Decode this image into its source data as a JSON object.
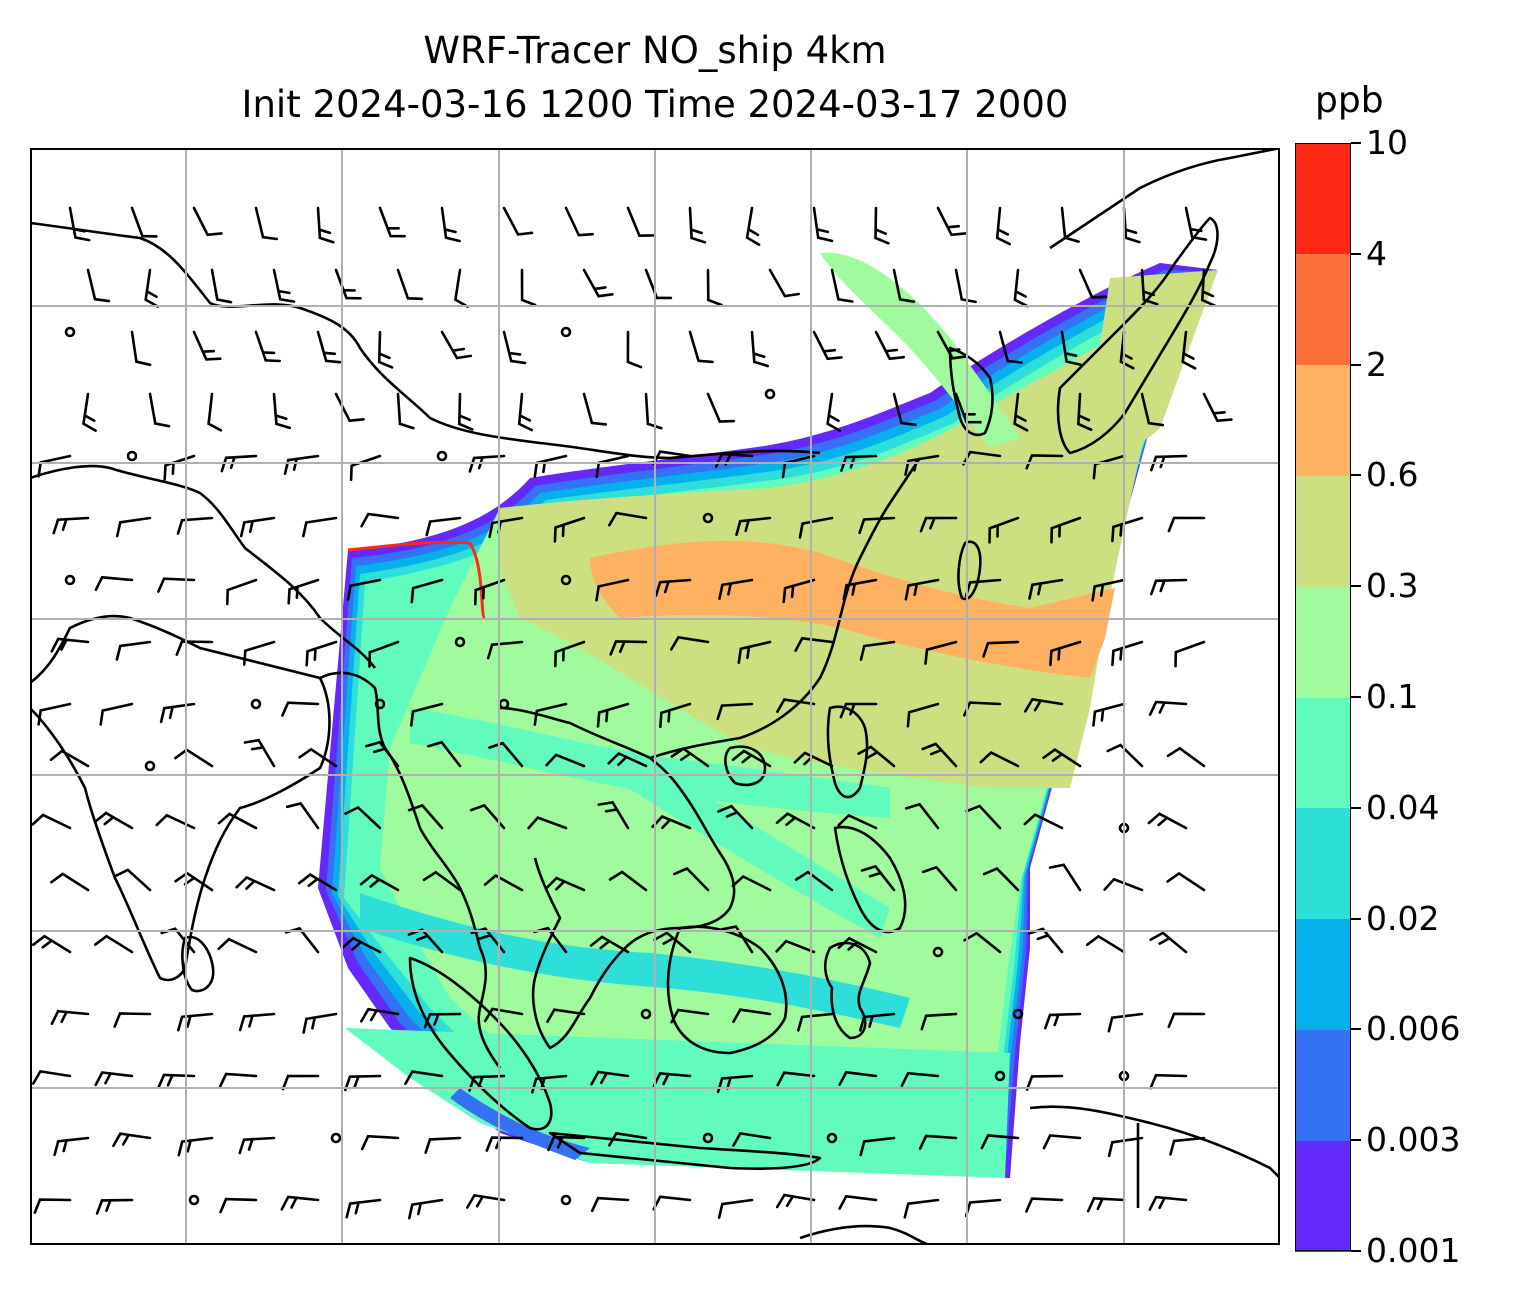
{
  "title_line1": "WRF-Tracer NO_ship 4km",
  "title_line2": "Init 2024-03-16 1200 Time 2024-03-17 2000",
  "colorbar": {
    "unit": "ppb",
    "ticks": [
      "0.001",
      "0.003",
      "0.006",
      "0.02",
      "0.04",
      "0.1",
      "0.3",
      "0.6",
      "2",
      "4",
      "10"
    ],
    "colors": [
      "#6528fa",
      "#3471f4",
      "#06b0ed",
      "#2ddfd8",
      "#62fbbe",
      "#9ffb9b",
      "#cce081",
      "#fdb161",
      "#fe7039",
      "#fe2916"
    ]
  },
  "map": {
    "gridlines": true,
    "coastline_color": "#000000",
    "grid_color": "#b0b0b0",
    "layers": [
      "tracer-field",
      "coastlines",
      "wind-barbs",
      "gridlines"
    ]
  }
}
